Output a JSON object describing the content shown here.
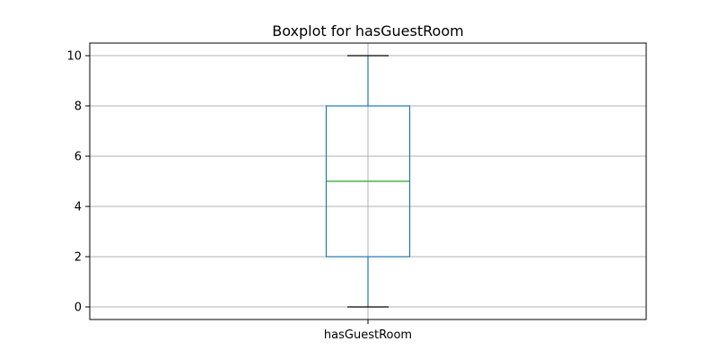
{
  "chart_data": {
    "type": "box",
    "title": "Boxplot for hasGuestRoom",
    "categories": [
      "hasGuestRoom"
    ],
    "boxes": [
      {
        "whisker_low": 0,
        "q1": 2,
        "median": 5,
        "q3": 8,
        "whisker_high": 10
      }
    ],
    "yticks": [
      0,
      2,
      4,
      6,
      8,
      10
    ],
    "ylim": [
      -0.5,
      10.5
    ],
    "grid": true,
    "colors": {
      "box": "#1f77b4",
      "median": "#2ca02c",
      "whisker": "#1f77b4",
      "cap": "#000000",
      "grid": "#b0b0b0"
    }
  }
}
